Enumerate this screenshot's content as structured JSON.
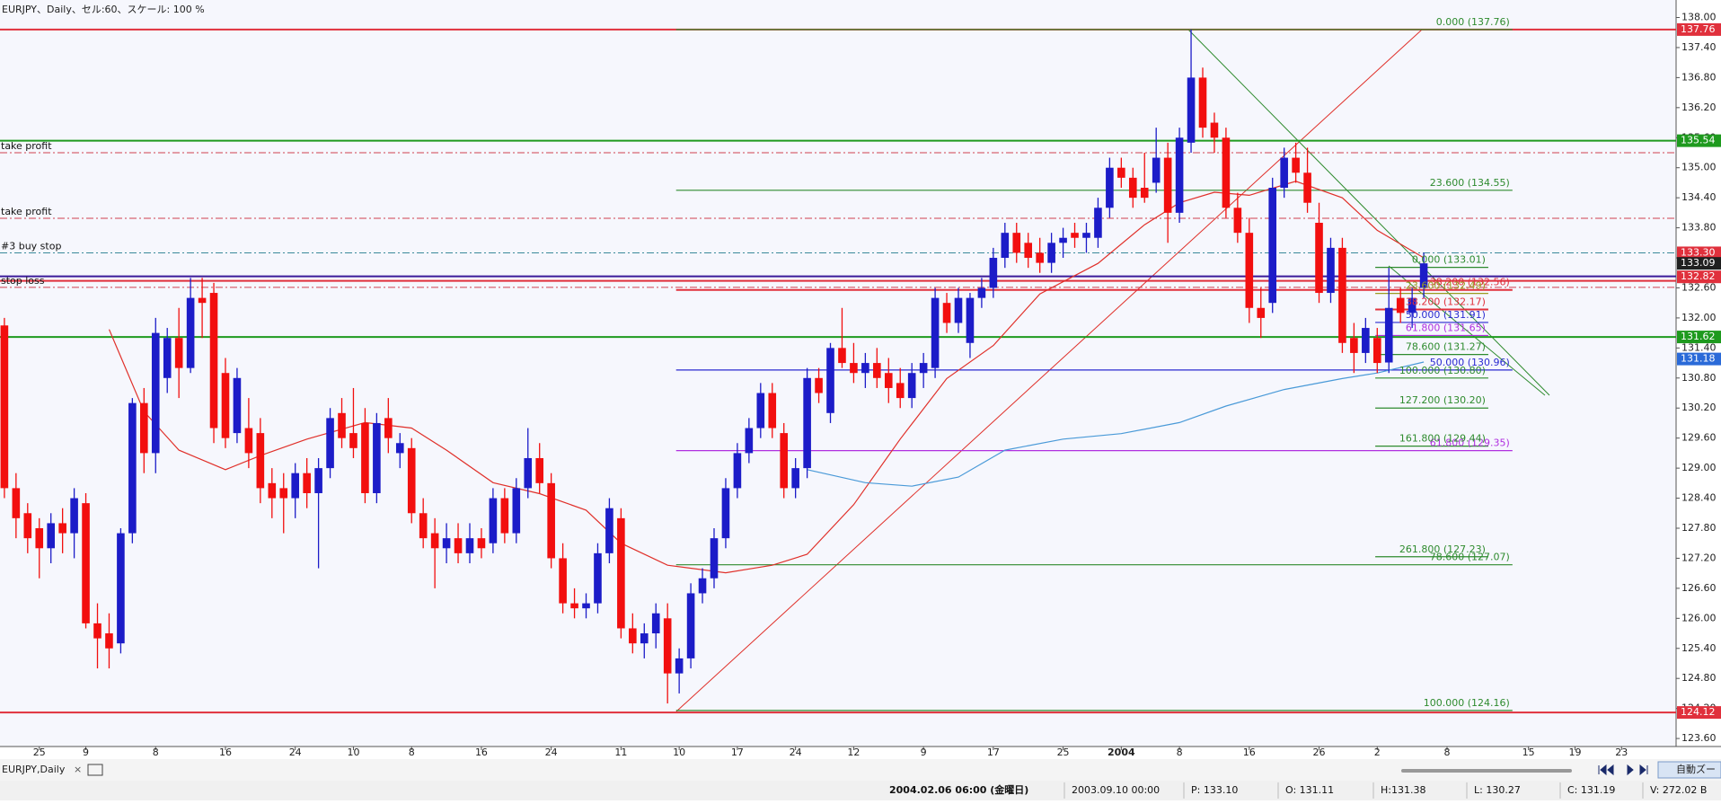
{
  "header": {
    "title": "EURJPY、Daily、セル:60、スケール: 100 %"
  },
  "chart_data": {
    "type": "candlestick",
    "up_color": "#1c1cc8",
    "down_color": "#f20f0f",
    "ylim": [
      123.44,
      138.35
    ],
    "yticks": [
      {
        "value": 138,
        "label": "138.00"
      },
      {
        "value": 137.4,
        "label": "137.40"
      },
      {
        "value": 136.8,
        "label": "136.80"
      },
      {
        "value": 136.2,
        "label": "136.20"
      },
      {
        "value": 135.6,
        "label": "135.60"
      },
      {
        "value": 135,
        "label": "135.00"
      },
      {
        "value": 134.4,
        "label": "134.40"
      },
      {
        "value": 133.8,
        "label": "133.80"
      },
      {
        "value": 133.2,
        "label": "133.20"
      },
      {
        "value": 132.6,
        "label": "132.60"
      },
      {
        "value": 132,
        "label": "132.00"
      },
      {
        "value": 131.4,
        "label": "131.40"
      },
      {
        "value": 130.8,
        "label": "130.80"
      },
      {
        "value": 130.2,
        "label": "130.20"
      },
      {
        "value": 129.6,
        "label": "129.60"
      },
      {
        "value": 129,
        "label": "129.00"
      },
      {
        "value": 128.4,
        "label": "128.40"
      },
      {
        "value": 127.8,
        "label": "127.80"
      },
      {
        "value": 127.2,
        "label": "127.20"
      },
      {
        "value": 126.6,
        "label": "126.60"
      },
      {
        "value": 126,
        "label": "126.00"
      },
      {
        "value": 125.4,
        "label": "125.40"
      },
      {
        "value": 124.8,
        "label": "124.80"
      },
      {
        "value": 124.2,
        "label": "124.20"
      },
      {
        "value": 123.6,
        "label": "123.60"
      }
    ],
    "categories": [
      null,
      null,
      null,
      "25",
      null,
      null,
      null,
      "9",
      null,
      null,
      null,
      null,
      null,
      "8",
      null,
      null,
      null,
      null,
      null,
      "16",
      null,
      null,
      null,
      null,
      null,
      "24",
      null,
      null,
      null,
      null,
      "10",
      null,
      null,
      null,
      null,
      "8",
      null,
      null,
      null,
      null,
      null,
      "16",
      null,
      null,
      null,
      null,
      null,
      "24",
      null,
      null,
      null,
      null,
      null,
      "11",
      null,
      null,
      null,
      null,
      "10",
      null,
      null,
      null,
      null,
      "17",
      null,
      null,
      null,
      null,
      "24",
      null,
      null,
      null,
      null,
      "12",
      null,
      null,
      null,
      null,
      null,
      "9",
      null,
      null,
      null,
      null,
      null,
      "17",
      null,
      null,
      null,
      null,
      null,
      "25",
      null,
      null,
      null,
      null,
      "2004",
      null,
      null,
      null,
      null,
      "8",
      null,
      null,
      null,
      null,
      null,
      "16",
      null,
      null,
      null,
      null,
      null,
      "26",
      null,
      null,
      null,
      null,
      "2",
      null,
      null,
      null,
      null,
      null,
      "8",
      null,
      null,
      null,
      null,
      null,
      null,
      "15",
      null,
      null,
      null,
      "19",
      null,
      null,
      null,
      "23",
      null,
      null,
      null,
      null
    ],
    "candles": [
      [
        131.85,
        132.0,
        128.4,
        128.6
      ],
      [
        128.6,
        128.9,
        127.6,
        128.0
      ],
      [
        128.1,
        128.3,
        127.3,
        127.6
      ],
      [
        127.8,
        128.0,
        126.8,
        127.4
      ],
      [
        127.4,
        128.1,
        127.1,
        127.9
      ],
      [
        127.9,
        128.2,
        127.3,
        127.7
      ],
      [
        127.7,
        128.6,
        127.2,
        128.4
      ],
      [
        128.3,
        128.5,
        125.8,
        125.9
      ],
      [
        125.9,
        126.3,
        125.0,
        125.6
      ],
      [
        125.7,
        126.1,
        125.0,
        125.4
      ],
      [
        125.5,
        127.8,
        125.3,
        127.7
      ],
      [
        127.7,
        130.4,
        127.5,
        130.3
      ],
      [
        130.3,
        130.6,
        128.9,
        129.3
      ],
      [
        129.3,
        132.0,
        128.9,
        131.7
      ],
      [
        130.8,
        131.8,
        130.5,
        131.6
      ],
      [
        131.6,
        132.2,
        130.4,
        131.0
      ],
      [
        131.0,
        132.8,
        130.9,
        132.4
      ],
      [
        132.4,
        132.8,
        131.6,
        132.3
      ],
      [
        132.5,
        132.7,
        129.5,
        129.8
      ],
      [
        130.9,
        131.2,
        129.4,
        129.6
      ],
      [
        129.7,
        131.0,
        129.5,
        130.8
      ],
      [
        129.8,
        130.4,
        129.0,
        129.3
      ],
      [
        129.7,
        130.0,
        128.3,
        128.6
      ],
      [
        128.7,
        129.0,
        128.0,
        128.4
      ],
      [
        128.6,
        128.9,
        127.7,
        128.4
      ],
      [
        128.4,
        129.1,
        128.0,
        128.9
      ],
      [
        128.9,
        129.2,
        128.2,
        128.5
      ],
      [
        128.5,
        129.2,
        127.0,
        129.0
      ],
      [
        129.0,
        130.2,
        128.8,
        130.0
      ],
      [
        130.1,
        130.4,
        129.4,
        129.6
      ],
      [
        129.7,
        130.6,
        129.2,
        129.4
      ],
      [
        129.9,
        130.2,
        128.3,
        128.5
      ],
      [
        128.5,
        130.1,
        128.3,
        129.9
      ],
      [
        130.0,
        130.4,
        129.3,
        129.6
      ],
      [
        129.3,
        129.7,
        129.0,
        129.5
      ],
      [
        129.4,
        129.6,
        127.9,
        128.1
      ],
      [
        128.1,
        128.4,
        127.4,
        127.6
      ],
      [
        127.7,
        128.0,
        126.6,
        127.4
      ],
      [
        127.4,
        127.9,
        127.1,
        127.6
      ],
      [
        127.6,
        127.9,
        127.1,
        127.3
      ],
      [
        127.3,
        127.9,
        127.1,
        127.6
      ],
      [
        127.6,
        127.8,
        127.2,
        127.4
      ],
      [
        127.5,
        128.6,
        127.3,
        128.4
      ],
      [
        128.4,
        128.6,
        127.5,
        127.7
      ],
      [
        127.7,
        128.8,
        127.5,
        128.6
      ],
      [
        128.6,
        129.8,
        128.4,
        129.2
      ],
      [
        129.2,
        129.5,
        128.5,
        128.7
      ],
      [
        128.7,
        128.9,
        127.0,
        127.2
      ],
      [
        127.2,
        127.5,
        126.1,
        126.3
      ],
      [
        126.3,
        126.6,
        126.0,
        126.2
      ],
      [
        126.2,
        126.5,
        126.0,
        126.3
      ],
      [
        126.3,
        127.5,
        126.1,
        127.3
      ],
      [
        127.3,
        128.4,
        127.1,
        128.2
      ],
      [
        128.0,
        128.2,
        125.6,
        125.8
      ],
      [
        125.8,
        126.1,
        125.3,
        125.5
      ],
      [
        125.5,
        125.9,
        125.2,
        125.7
      ],
      [
        125.7,
        126.3,
        125.4,
        126.1
      ],
      [
        126.0,
        126.3,
        124.3,
        124.9
      ],
      [
        124.9,
        125.4,
        124.5,
        125.2
      ],
      [
        125.2,
        126.7,
        125.0,
        126.5
      ],
      [
        126.5,
        127.0,
        126.3,
        126.8
      ],
      [
        126.8,
        127.8,
        126.6,
        127.6
      ],
      [
        127.6,
        128.8,
        127.4,
        128.6
      ],
      [
        128.6,
        129.5,
        128.4,
        129.3
      ],
      [
        129.3,
        130.0,
        129.1,
        129.8
      ],
      [
        129.8,
        130.7,
        129.6,
        130.5
      ],
      [
        130.5,
        130.7,
        129.6,
        129.8
      ],
      [
        129.7,
        129.9,
        128.4,
        128.6
      ],
      [
        128.6,
        129.2,
        128.4,
        129.0
      ],
      [
        129.0,
        131.0,
        128.8,
        130.8
      ],
      [
        130.8,
        131.0,
        130.3,
        130.5
      ],
      [
        130.1,
        131.5,
        129.9,
        131.4
      ],
      [
        131.4,
        132.2,
        131.0,
        131.1
      ],
      [
        131.1,
        131.5,
        130.7,
        130.9
      ],
      [
        130.9,
        131.3,
        130.6,
        131.1
      ],
      [
        131.1,
        131.4,
        130.6,
        130.8
      ],
      [
        130.9,
        131.2,
        130.3,
        130.6
      ],
      [
        130.7,
        131.0,
        130.2,
        130.4
      ],
      [
        130.4,
        131.1,
        130.2,
        130.9
      ],
      [
        130.9,
        131.3,
        130.6,
        131.1
      ],
      [
        131.0,
        132.6,
        130.8,
        132.4
      ],
      [
        132.3,
        132.5,
        131.7,
        131.9
      ],
      [
        131.9,
        132.6,
        131.7,
        132.4
      ],
      [
        131.5,
        132.5,
        131.2,
        132.4
      ],
      [
        132.4,
        132.8,
        132.2,
        132.6
      ],
      [
        132.6,
        133.4,
        132.4,
        133.2
      ],
      [
        133.2,
        133.9,
        133.0,
        133.7
      ],
      [
        133.7,
        133.9,
        133.1,
        133.3
      ],
      [
        133.5,
        133.7,
        133.0,
        133.2
      ],
      [
        133.3,
        133.6,
        132.9,
        133.1
      ],
      [
        133.1,
        133.7,
        132.9,
        133.5
      ],
      [
        133.5,
        133.8,
        133.2,
        133.6
      ],
      [
        133.7,
        133.9,
        133.4,
        133.6
      ],
      [
        133.6,
        133.9,
        133.3,
        133.7
      ],
      [
        133.6,
        134.4,
        133.4,
        134.2
      ],
      [
        134.2,
        135.2,
        134.0,
        135.0
      ],
      [
        135.0,
        135.2,
        134.6,
        134.8
      ],
      [
        134.8,
        135.0,
        134.2,
        134.4
      ],
      [
        134.6,
        135.3,
        134.3,
        134.4
      ],
      [
        134.7,
        135.8,
        134.5,
        135.2
      ],
      [
        135.2,
        135.5,
        133.5,
        134.1
      ],
      [
        134.1,
        135.8,
        133.9,
        135.6
      ],
      [
        135.5,
        137.76,
        135.3,
        136.8
      ],
      [
        136.8,
        137.0,
        135.6,
        135.8
      ],
      [
        135.9,
        136.1,
        135.3,
        135.6
      ],
      [
        135.6,
        135.8,
        134.0,
        134.2
      ],
      [
        134.2,
        134.5,
        133.5,
        133.7
      ],
      [
        133.7,
        134.0,
        131.9,
        132.2
      ],
      [
        132.2,
        132.6,
        131.6,
        132.0
      ],
      [
        132.3,
        134.8,
        132.1,
        134.6
      ],
      [
        134.6,
        135.4,
        134.4,
        135.2
      ],
      [
        135.2,
        135.5,
        134.7,
        134.9
      ],
      [
        134.9,
        135.4,
        134.1,
        134.3
      ],
      [
        133.9,
        134.3,
        132.3,
        132.5
      ],
      [
        132.5,
        133.6,
        132.3,
        133.4
      ],
      [
        133.4,
        133.6,
        131.3,
        131.5
      ],
      [
        131.6,
        131.9,
        130.9,
        131.3
      ],
      [
        131.3,
        132.0,
        131.1,
        131.8
      ],
      [
        131.6,
        131.8,
        130.9,
        131.1
      ],
      [
        131.11,
        133.0,
        130.9,
        132.2
      ],
      [
        132.4,
        132.6,
        131.9,
        132.1
      ],
      [
        132.1,
        132.6,
        131.8,
        132.4
      ],
      [
        132.6,
        133.3,
        132.4,
        133.09
      ],
      null,
      null,
      null,
      null,
      null,
      null,
      null,
      null,
      null,
      null,
      null,
      null,
      null,
      null,
      null,
      null,
      null,
      null,
      null,
      null,
      null
    ],
    "moving_averages": [
      {
        "color": "#e0302a",
        "x": [
          9,
          12,
          15,
          19,
          22,
          26,
          31,
          35,
          38,
          42,
          46,
          50,
          53,
          57,
          62,
          66,
          69,
          73,
          77,
          81,
          85,
          89,
          94,
          98,
          101,
          104,
          107,
          111,
          115,
          118,
          122
        ],
        "values": [
          131.77,
          130.13,
          129.36,
          128.97,
          129.25,
          129.58,
          129.91,
          129.8,
          129.36,
          128.71,
          128.49,
          128.16,
          127.5,
          127.06,
          126.91,
          127.06,
          127.28,
          128.27,
          129.58,
          130.79,
          131.45,
          132.48,
          133.09,
          133.86,
          134.3,
          134.51,
          134.45,
          134.73,
          134.4,
          133.75,
          133.2
        ]
      },
      {
        "color": "#4a9ad8",
        "x": [
          69,
          74,
          78,
          82,
          86,
          91,
          96,
          101,
          105,
          110,
          115,
          118,
          122
        ],
        "values": [
          128.97,
          128.71,
          128.64,
          128.82,
          129.36,
          129.58,
          129.69,
          129.91,
          130.24,
          130.57,
          130.79,
          130.9,
          131.12
        ]
      }
    ],
    "levels": [
      {
        "price": 137.76,
        "color": "#e0303c",
        "style": "solid"
      },
      {
        "price": 135.54,
        "color": "#1e9a1e",
        "style": "solid"
      },
      {
        "price": 135.3,
        "color": "#d04050",
        "style": "dashdot",
        "label": "take profit"
      },
      {
        "price": 133.99,
        "color": "#d04050",
        "style": "dashdot",
        "label": "take profit"
      },
      {
        "price": 133.3,
        "color": "#3a8a9a",
        "style": "dashdot",
        "label": "#3 buy stop"
      },
      {
        "price": 132.83,
        "color": "#3a1a9a",
        "style": "solid"
      },
      {
        "price": 132.74,
        "color": "#e0303c",
        "style": "solid"
      },
      {
        "price": 132.61,
        "color": "#d04050",
        "style": "dashdot",
        "label": "stop loss"
      },
      {
        "price": 131.62,
        "color": "#1e9a1e",
        "style": "solid"
      },
      {
        "price": 124.12,
        "color": "#e0303c",
        "style": "solid"
      }
    ],
    "price_tags": [
      {
        "value": 137.76,
        "color": "#e0303c"
      },
      {
        "value": 135.54,
        "color": "#1e9a1e"
      },
      {
        "value": 133.3,
        "label": "133.30",
        "color": "#e0303c"
      },
      {
        "value": 133.09,
        "color": "#202020"
      },
      {
        "value": 132.82,
        "color": "#e0303c"
      },
      {
        "value": 131.62,
        "color": "#1e9a1e"
      },
      {
        "value": 131.18,
        "color": "#2a6ad8"
      },
      {
        "value": 124.12,
        "color": "#e0303c"
      }
    ],
    "fibonacci": [
      {
        "levels": [
          {
            "price": 137.76,
            "label": "0.000 (137.76)",
            "color": "#2e8b2e"
          },
          {
            "price": 134.55,
            "label": "23.600 (134.55)",
            "color": "#2e8b2e"
          },
          {
            "price": 132.56,
            "label": "38.200 (132.56)",
            "color": "#e0303c"
          },
          {
            "price": 130.96,
            "label": "50.000 (130.96)",
            "color": "#2a2ad0"
          },
          {
            "price": 129.35,
            "label": "61.800 (129.35)",
            "color": "#b030e0"
          },
          {
            "price": 127.07,
            "label": "78.600 (127.07)",
            "color": "#2e8b2e"
          },
          {
            "price": 124.16,
            "label": "100.000 (124.16)",
            "color": "#2e8b2e"
          }
        ]
      },
      {
        "levels": [
          {
            "price": 133.01,
            "label": "0.000 (133.01)",
            "color": "#2e8b2e"
          },
          {
            "price": 132.49,
            "label": "23.600 (132.49)",
            "color": "#9a9a20"
          },
          {
            "price": 132.17,
            "label": "38.200 (132.17)",
            "color": "#e0303c"
          },
          {
            "price": 131.91,
            "label": "50.000 (131.91)",
            "color": "#2a2ad0"
          },
          {
            "price": 131.65,
            "label": "61.800 (131.65)",
            "color": "#b030e0"
          },
          {
            "price": 131.27,
            "label": "78.600 (131.27)",
            "color": "#2e8b2e"
          },
          {
            "price": 130.8,
            "label": "100.000 (130.80)",
            "color": "#2e8b2e"
          },
          {
            "price": 130.2,
            "label": "127.200 (130.20)",
            "color": "#2e8b2e"
          },
          {
            "price": 129.44,
            "label": "161.800 (129.44)",
            "color": "#2e8b2e"
          },
          {
            "price": 127.23,
            "label": "261.800 (127.23)",
            "color": "#2e8b2e"
          }
        ]
      }
    ]
  },
  "tab": {
    "label": "EURJPY,Daily",
    "close": "×"
  },
  "toolbar": {
    "zoom": "自動ズー"
  },
  "status_bar": [
    "2004.02.06 06:00 (金曜日)",
    "2003.09.10 00:00",
    "P: 133.10",
    "O: 131.11",
    "H:131.38",
    "L: 130.27",
    "C: 131.19",
    "V: 272.02 B"
  ]
}
